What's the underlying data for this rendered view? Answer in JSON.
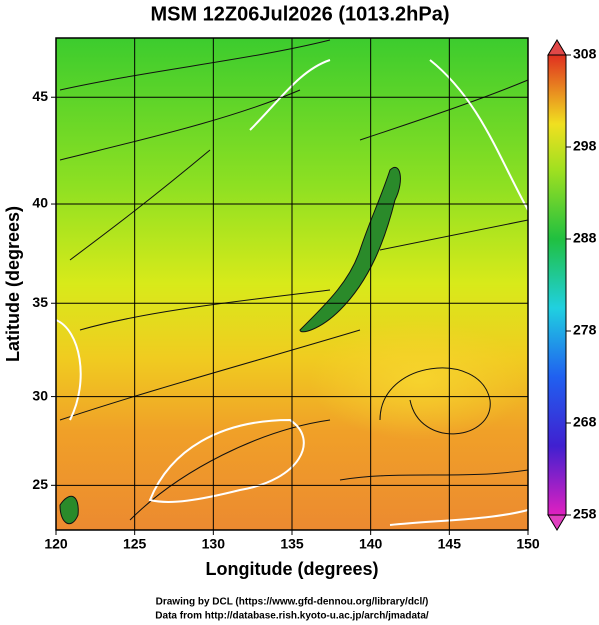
{
  "title": "MSM 12Z06Jul2026 (1013.2hPa)",
  "x_axis": {
    "label": "Longitude (degrees)",
    "lim": [
      120,
      150
    ],
    "ticks": [
      120,
      125,
      130,
      135,
      140,
      145,
      150
    ]
  },
  "y_axis": {
    "label": "Latitude (degrees)",
    "lim": [
      22.4,
      47.6
    ],
    "ticks": [
      25,
      30,
      35,
      40,
      45
    ],
    "scale": "mercator"
  },
  "colorbar": {
    "lim": [
      258,
      308
    ],
    "ticks": [
      258,
      268,
      278,
      288,
      298,
      308
    ]
  },
  "footer": [
    "Drawing by DCL (https://www.gfd-dennou.org/library/dcl/)",
    "Data from http://database.rish.kyoto-u.ac.jp/arch/jmadata/"
  ]
}
